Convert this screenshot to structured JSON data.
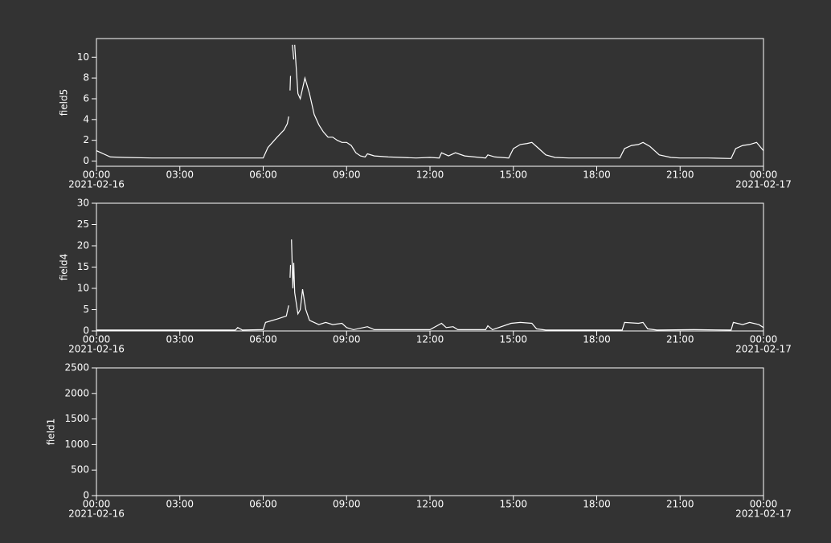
{
  "chart_data": [
    {
      "type": "line",
      "ylabel": "field5",
      "xlim": [
        "2021-02-16 00:00",
        "2021-02-17 00:00"
      ],
      "ylim": [
        -0.5,
        11.8
      ],
      "yticks": [
        0,
        2,
        4,
        6,
        8,
        10
      ],
      "xticks": [
        {
          "value": "2021-02-16 00:00",
          "label": "00:00",
          "sublabel": "2021-02-16"
        },
        {
          "value": "2021-02-16 03:00",
          "label": "03:00"
        },
        {
          "value": "2021-02-16 06:00",
          "label": "06:00"
        },
        {
          "value": "2021-02-16 09:00",
          "label": "09:00"
        },
        {
          "value": "2021-02-16 12:00",
          "label": "12:00"
        },
        {
          "value": "2021-02-16 15:00",
          "label": "15:00"
        },
        {
          "value": "2021-02-16 18:00",
          "label": "18:00"
        },
        {
          "value": "2021-02-16 21:00",
          "label": "21:00"
        },
        {
          "value": "2021-02-17 00:00",
          "label": "00:00",
          "sublabel": "2021-02-17"
        }
      ],
      "x": [
        "2021-02-16 00:00",
        "2021-02-16 00:30",
        "2021-02-16 01:00",
        "2021-02-16 02:00",
        "2021-02-16 03:00",
        "2021-02-16 04:00",
        "2021-02-16 05:00",
        "2021-02-16 06:00",
        "2021-02-16 06:10",
        "2021-02-16 06:30",
        "2021-02-16 06:45",
        "2021-02-16 06:52",
        "2021-02-16 06:55",
        "2021-02-16 06:57",
        "2021-02-16 06:58",
        "2021-02-16 06:59",
        "2021-02-16 07:00",
        "2021-02-16 07:03",
        "2021-02-16 07:06",
        "2021-02-16 07:07",
        "2021-02-16 07:08",
        "2021-02-16 07:12",
        "2021-02-16 07:15",
        "2021-02-16 07:20",
        "2021-02-16 07:30",
        "2021-02-16 07:40",
        "2021-02-16 07:50",
        "2021-02-16 08:00",
        "2021-02-16 08:10",
        "2021-02-16 08:20",
        "2021-02-16 08:30",
        "2021-02-16 08:40",
        "2021-02-16 08:50",
        "2021-02-16 09:00",
        "2021-02-16 09:10",
        "2021-02-16 09:20",
        "2021-02-16 09:30",
        "2021-02-16 09:40",
        "2021-02-16 09:45",
        "2021-02-16 10:00",
        "2021-02-16 10:30",
        "2021-02-16 11:00",
        "2021-02-16 11:30",
        "2021-02-16 12:00",
        "2021-02-16 12:20",
        "2021-02-16 12:25",
        "2021-02-16 12:40",
        "2021-02-16 12:55",
        "2021-02-16 13:15",
        "2021-02-16 14:00",
        "2021-02-16 14:05",
        "2021-02-16 14:20",
        "2021-02-16 14:50",
        "2021-02-16 15:00",
        "2021-02-16 15:15",
        "2021-02-16 15:30",
        "2021-02-16 15:40",
        "2021-02-16 15:55",
        "2021-02-16 16:10",
        "2021-02-16 16:30",
        "2021-02-16 17:00",
        "2021-02-16 18:00",
        "2021-02-16 18:50",
        "2021-02-16 19:00",
        "2021-02-16 19:15",
        "2021-02-16 19:30",
        "2021-02-16 19:40",
        "2021-02-16 19:55",
        "2021-02-16 20:15",
        "2021-02-16 20:40",
        "2021-02-16 21:00",
        "2021-02-16 22:00",
        "2021-02-16 22:50",
        "2021-02-16 23:00",
        "2021-02-16 23:15",
        "2021-02-16 23:30",
        "2021-02-16 23:45",
        "2021-02-17 00:00"
      ],
      "series": [
        {
          "name": "field5",
          "color": "#ffffff",
          "values": [
            1.0,
            0.4,
            0.35,
            0.3,
            0.3,
            0.3,
            0.3,
            0.3,
            1.3,
            2.3,
            3.0,
            3.6,
            4.3,
            null,
            6.8,
            8.2,
            null,
            11.2,
            9.8,
            null,
            11.2,
            8.5,
            6.5,
            6.0,
            8.0,
            6.5,
            4.5,
            3.5,
            2.8,
            2.3,
            2.3,
            2.0,
            1.8,
            1.8,
            1.5,
            0.8,
            0.5,
            0.4,
            0.7,
            0.5,
            0.4,
            0.35,
            0.3,
            0.35,
            0.3,
            0.8,
            0.5,
            0.8,
            0.5,
            0.3,
            0.6,
            0.4,
            0.3,
            1.2,
            1.6,
            1.7,
            1.8,
            1.2,
            0.6,
            0.35,
            0.3,
            0.3,
            0.3,
            1.2,
            1.5,
            1.6,
            1.8,
            1.4,
            0.6,
            0.35,
            0.3,
            0.3,
            0.25,
            1.2,
            1.5,
            1.6,
            1.8,
            1.0
          ]
        }
      ]
    },
    {
      "type": "line",
      "ylabel": "field4",
      "xlim": [
        "2021-02-16 00:00",
        "2021-02-17 00:00"
      ],
      "ylim": [
        0,
        30
      ],
      "yticks": [
        0,
        5,
        10,
        15,
        20,
        25,
        30
      ],
      "xticks": [
        {
          "value": "2021-02-16 00:00",
          "label": "00:00",
          "sublabel": "2021-02-16"
        },
        {
          "value": "2021-02-16 03:00",
          "label": "03:00"
        },
        {
          "value": "2021-02-16 06:00",
          "label": "06:00"
        },
        {
          "value": "2021-02-16 09:00",
          "label": "09:00"
        },
        {
          "value": "2021-02-16 12:00",
          "label": "12:00"
        },
        {
          "value": "2021-02-16 15:00",
          "label": "15:00"
        },
        {
          "value": "2021-02-16 18:00",
          "label": "18:00"
        },
        {
          "value": "2021-02-16 21:00",
          "label": "21:00"
        },
        {
          "value": "2021-02-17 00:00",
          "label": "00:00",
          "sublabel": "2021-02-17"
        }
      ],
      "x": [
        "2021-02-16 00:00",
        "2021-02-16 03:00",
        "2021-02-16 05:00",
        "2021-02-16 05:05",
        "2021-02-16 05:15",
        "2021-02-16 06:00",
        "2021-02-16 06:05",
        "2021-02-16 06:30",
        "2021-02-16 06:50",
        "2021-02-16 06:55",
        "2021-02-16 06:57",
        "2021-02-16 06:58",
        "2021-02-16 06:59",
        "2021-02-16 07:00",
        "2021-02-16 07:01",
        "2021-02-16 07:04",
        "2021-02-16 07:06",
        "2021-02-16 07:08",
        "2021-02-16 07:15",
        "2021-02-16 07:20",
        "2021-02-16 07:25",
        "2021-02-16 07:32",
        "2021-02-16 07:40",
        "2021-02-16 08:00",
        "2021-02-16 08:15",
        "2021-02-16 08:30",
        "2021-02-16 08:50",
        "2021-02-16 09:00",
        "2021-02-16 09:15",
        "2021-02-16 09:45",
        "2021-02-16 10:00",
        "2021-02-16 11:00",
        "2021-02-16 12:00",
        "2021-02-16 12:25",
        "2021-02-16 12:35",
        "2021-02-16 12:50",
        "2021-02-16 13:00",
        "2021-02-16 14:00",
        "2021-02-16 14:05",
        "2021-02-16 14:15",
        "2021-02-16 14:55",
        "2021-02-16 15:15",
        "2021-02-16 15:40",
        "2021-02-16 15:50",
        "2021-02-16 16:10",
        "2021-02-16 18:55",
        "2021-02-16 19:00",
        "2021-02-16 19:30",
        "2021-02-16 19:40",
        "2021-02-16 19:50",
        "2021-02-16 20:10",
        "2021-02-16 21:30",
        "2021-02-16 22:50",
        "2021-02-16 22:55",
        "2021-02-16 23:15",
        "2021-02-16 23:30",
        "2021-02-16 23:50",
        "2021-02-17 00:00"
      ],
      "series": [
        {
          "name": "field4",
          "color": "#ffffff",
          "values": [
            0.2,
            0.2,
            0.2,
            0.8,
            0.2,
            0.3,
            2.0,
            2.8,
            3.5,
            6.0,
            null,
            12.5,
            15.5,
            null,
            21.5,
            10.0,
            16.0,
            9.0,
            4.0,
            5.0,
            9.8,
            5.0,
            2.5,
            1.5,
            2.0,
            1.5,
            1.8,
            0.8,
            0.3,
            1.0,
            0.3,
            0.3,
            0.3,
            1.8,
            0.8,
            1.0,
            0.3,
            0.3,
            1.2,
            0.3,
            1.8,
            2.0,
            1.8,
            0.5,
            0.2,
            0.2,
            2.0,
            1.8,
            2.0,
            0.5,
            0.2,
            0.3,
            0.2,
            2.0,
            1.5,
            2.0,
            1.5,
            0.8
          ]
        }
      ]
    },
    {
      "type": "line",
      "ylabel": "field1",
      "xlim": [
        "2021-02-16 00:00",
        "2021-02-17 00:00"
      ],
      "ylim": [
        0,
        2500
      ],
      "yticks": [
        0,
        500,
        1000,
        1500,
        2000,
        2500
      ],
      "xticks": [
        {
          "value": "2021-02-16 00:00",
          "label": "00:00",
          "sublabel": "2021-02-16"
        },
        {
          "value": "2021-02-16 03:00",
          "label": "03:00"
        },
        {
          "value": "2021-02-16 06:00",
          "label": "06:00"
        },
        {
          "value": "2021-02-16 09:00",
          "label": "09:00"
        },
        {
          "value": "2021-02-16 12:00",
          "label": "12:00"
        },
        {
          "value": "2021-02-16 15:00",
          "label": "15:00"
        },
        {
          "value": "2021-02-16 18:00",
          "label": "18:00"
        },
        {
          "value": "2021-02-16 21:00",
          "label": "21:00"
        },
        {
          "value": "2021-02-17 00:00",
          "label": "00:00",
          "sublabel": "2021-02-17"
        }
      ]
    }
  ]
}
